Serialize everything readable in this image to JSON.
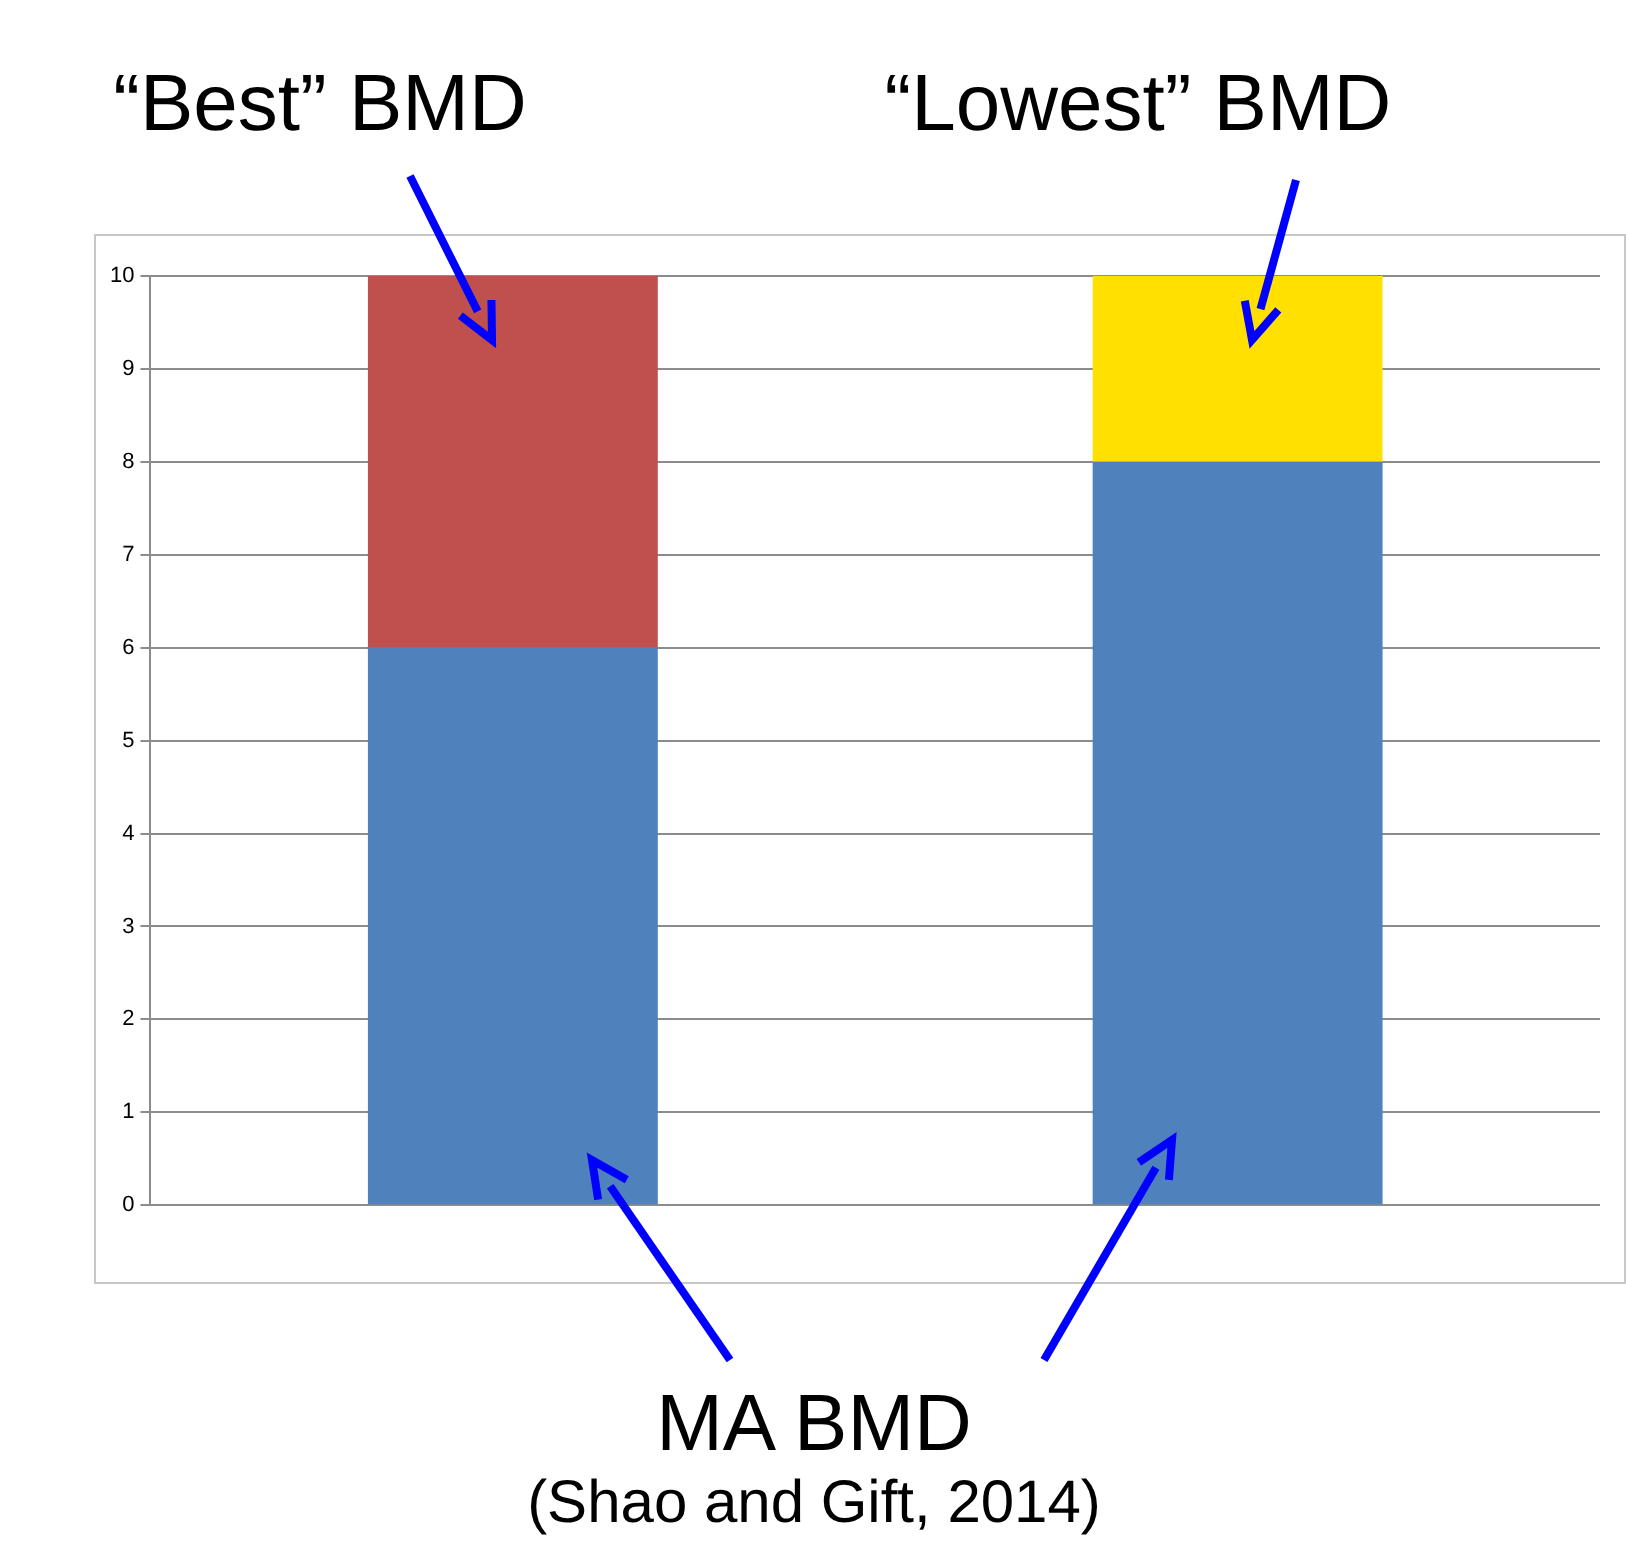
{
  "chart_data": {
    "type": "bar",
    "stacked": true,
    "categories": [
      null,
      null
    ],
    "series": [
      {
        "color": "#4f81bd",
        "values": [
          6,
          8
        ]
      },
      {
        "colors": [
          "#c0504d",
          "#ffe000"
        ],
        "values": [
          4,
          2
        ]
      }
    ],
    "ylim": [
      0,
      10
    ],
    "yticks": [
      0,
      1,
      2,
      3,
      4,
      5,
      6,
      7,
      8,
      9,
      10
    ],
    "grid": "y",
    "legend": false,
    "annotations": [
      "“Best” BMD",
      "“Lowest” BMD",
      "MA BMD",
      "(Shao and Gift, 2014)"
    ]
  }
}
